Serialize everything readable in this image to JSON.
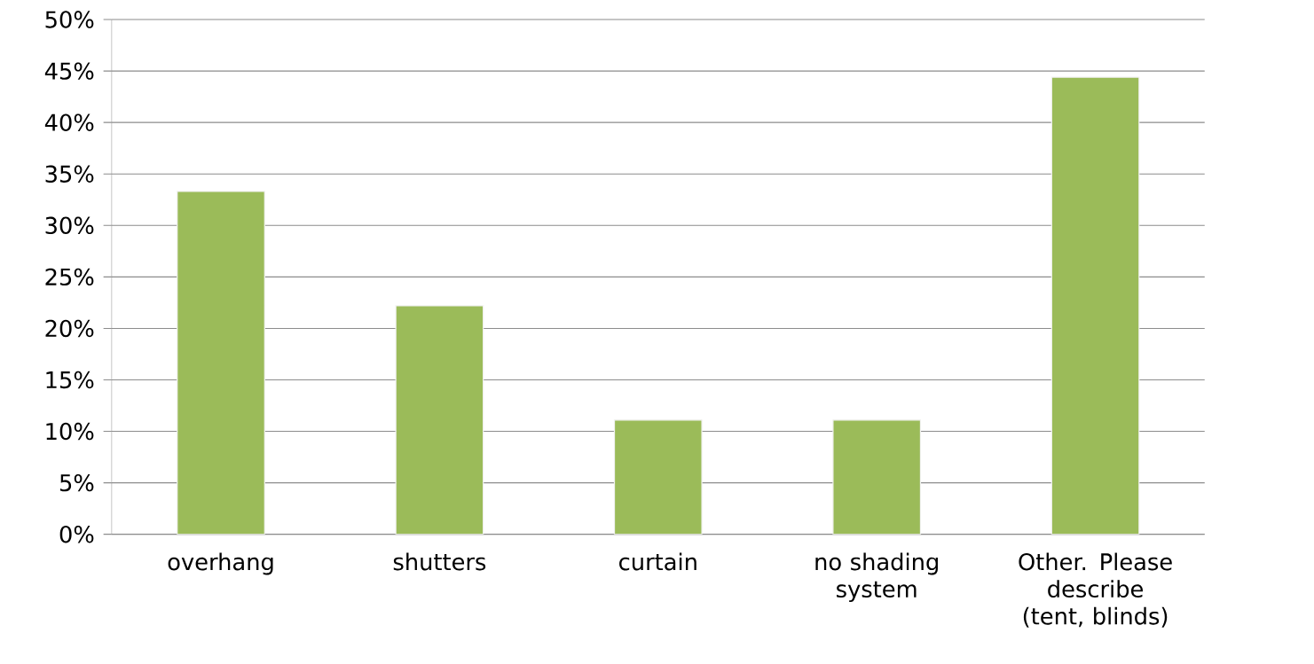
{
  "chart_data": {
    "type": "bar",
    "categories": [
      "overhang",
      "shutters",
      "curtain",
      "no shading system",
      "Other. Please describe (tent, blinds)"
    ],
    "values": [
      33.3,
      22.2,
      11.1,
      11.1,
      44.4
    ],
    "color": "#9bbb59",
    "ylim": [
      0,
      50
    ],
    "yticks": [
      {
        "value": 0,
        "label": "0%"
      },
      {
        "value": 5,
        "label": "5%"
      },
      {
        "value": 10,
        "label": "10%"
      },
      {
        "value": 15,
        "label": "15%"
      },
      {
        "value": 20,
        "label": "20%"
      },
      {
        "value": 25,
        "label": "25%"
      },
      {
        "value": 30,
        "label": "30%"
      },
      {
        "value": 35,
        "label": "35%"
      },
      {
        "value": 40,
        "label": "40%"
      },
      {
        "value": 45,
        "label": "45%"
      },
      {
        "value": 50,
        "label": "50%"
      }
    ],
    "grid": "y"
  }
}
